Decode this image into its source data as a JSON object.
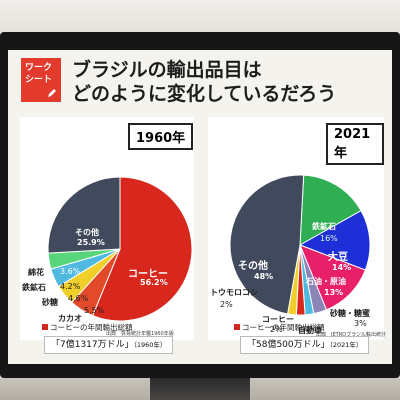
{
  "badge": {
    "line1": "ワーク",
    "line2": "シート"
  },
  "title": {
    "line1": "ブラジルの輸出品目は",
    "line2": "どのように変化しているだろう"
  },
  "colors": {
    "coffee": "#d8281d",
    "other": "#414a5c",
    "iron": "#2fae53",
    "soy": "#1e2fd8",
    "oil": "#e8206a",
    "sugar": "#8a84b8",
    "corn": "#f0cf2a",
    "cotton": "#58d47b",
    "cacao": "#e34a2a",
    "car": "#4fb9e0"
  },
  "chart_data": [
    {
      "type": "pie",
      "title": "1960年",
      "slices": [
        {
          "label": "コーヒー",
          "value": 56.2,
          "value_label": "56.2%"
        },
        {
          "label": "カカオ",
          "value": 5.5,
          "value_label": "5.5%"
        },
        {
          "label": "砂糖",
          "value": 4.6,
          "value_label": "4.6%"
        },
        {
          "label": "鉄鉱石",
          "value": 4.2,
          "value_label": "4.2%"
        },
        {
          "label": "綿花",
          "value": 3.6,
          "value_label": "3.6%"
        },
        {
          "label": "その他",
          "value": 25.9,
          "value_label": "25.9%"
        }
      ],
      "source": "出典　貿易統計年鑑1960年版"
    },
    {
      "type": "pie",
      "title": "2021年",
      "slices": [
        {
          "label": "鉄鉱石",
          "value": 16,
          "value_label": "16%"
        },
        {
          "label": "大豆",
          "value": 14,
          "value_label": "14%"
        },
        {
          "label": "石油・原油",
          "value": 13,
          "value_label": "13%"
        },
        {
          "label": "砂糖・糖蜜",
          "value": 3,
          "value_label": "3%"
        },
        {
          "label": "自動車",
          "value": 2,
          "value_label": "2%"
        },
        {
          "label": "コーヒー",
          "value": 2,
          "value_label": "2%"
        },
        {
          "label": "トウモロコシ",
          "value": 2,
          "value_label": "2%"
        },
        {
          "label": "その他",
          "value": 48,
          "value_label": "48%"
        }
      ],
      "source": "出典　JETROブラジル輸出統計"
    }
  ],
  "annual": [
    {
      "label": "コーヒーの年間輸出総額",
      "amount": "「7億1317万ドル」",
      "year": "（1960年）"
    },
    {
      "label": "コーヒーの年間輸出総額",
      "amount": "「58億500万ドル」",
      "year": "（2021年）"
    }
  ]
}
